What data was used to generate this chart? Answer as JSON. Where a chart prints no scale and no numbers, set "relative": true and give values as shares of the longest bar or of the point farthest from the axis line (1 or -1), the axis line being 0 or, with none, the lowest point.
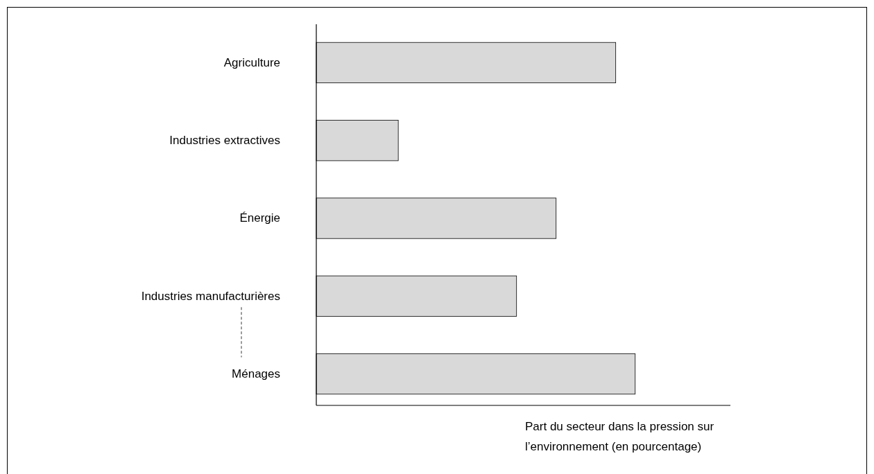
{
  "chart_data": {
    "type": "bar",
    "orientation": "horizontal",
    "relative": true,
    "categories": [
      "Agriculture",
      "Industries extractives",
      "Énergie",
      "Industries manufacturières",
      "Ménages"
    ],
    "values": [
      0.939,
      0.257,
      0.752,
      0.628,
      1
    ],
    "color": "#d9d9d9",
    "xlabel": "Part du secteur dans la pression sur l’environnement (en pourcentage)"
  }
}
